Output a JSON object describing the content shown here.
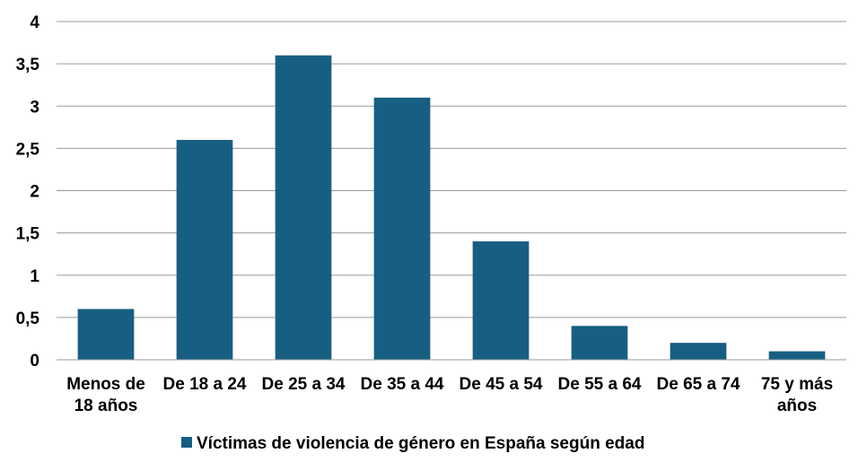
{
  "chart_data": {
    "type": "bar",
    "categories": [
      [
        "Menos de",
        "18 años"
      ],
      [
        "De 18 a 24"
      ],
      [
        "De 25 a 34"
      ],
      [
        "De 35 a 44"
      ],
      [
        "De 45 a 54"
      ],
      [
        "De 55 a 64"
      ],
      [
        "De 65 a 74"
      ],
      [
        "75 y más",
        "años"
      ]
    ],
    "series": [
      {
        "name": "Víctimas de violencia de género en España según edad",
        "color": "#175f82",
        "values": [
          0.6,
          2.6,
          3.6,
          3.1,
          1.4,
          0.4,
          0.2,
          0.1
        ]
      }
    ],
    "ylim": [
      0,
      4
    ],
    "yticks": [
      "0",
      "0,5",
      "1",
      "1,5",
      "2",
      "2,5",
      "3",
      "3,5",
      "4"
    ],
    "grid": true,
    "legend": "bottom"
  }
}
